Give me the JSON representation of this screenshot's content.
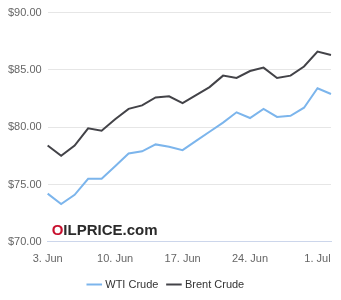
{
  "chart_data": {
    "type": "line",
    "categories": [
      "3. Jun",
      null,
      null,
      null,
      null,
      "10. Jun",
      null,
      null,
      null,
      null,
      "17. Jun",
      null,
      null,
      null,
      null,
      "24. Jun",
      null,
      null,
      null,
      null,
      "1. Jul",
      null
    ],
    "series": [
      {
        "name": "WTI Crude",
        "color": "#7cb5ec",
        "values": [
          74.2,
          73.3,
          74.1,
          75.5,
          75.5,
          76.6,
          77.7,
          77.9,
          78.5,
          78.3,
          78.0,
          78.8,
          79.6,
          80.4,
          81.3,
          80.8,
          81.6,
          80.9,
          81.0,
          81.7,
          83.4,
          82.9
        ]
      },
      {
        "name": "Brent Crude",
        "color": "#434348",
        "values": [
          78.4,
          77.5,
          78.4,
          79.9,
          79.7,
          80.7,
          81.6,
          81.9,
          82.6,
          82.7,
          82.1,
          82.8,
          83.5,
          84.5,
          84.3,
          84.9,
          85.2,
          84.3,
          84.5,
          85.3,
          86.6,
          86.3
        ]
      }
    ],
    "ylim": [
      70,
      90
    ],
    "yticks": [
      {
        "value": 70,
        "label": "$70.00"
      },
      {
        "value": 75,
        "label": "$75.00"
      },
      {
        "value": 80,
        "label": "$80.00"
      },
      {
        "value": 85,
        "label": "$85.00"
      },
      {
        "value": 90,
        "label": "$90.00"
      }
    ],
    "grid": true,
    "legend": "bottom",
    "annotations": [
      "OILPRICE.com"
    ]
  }
}
